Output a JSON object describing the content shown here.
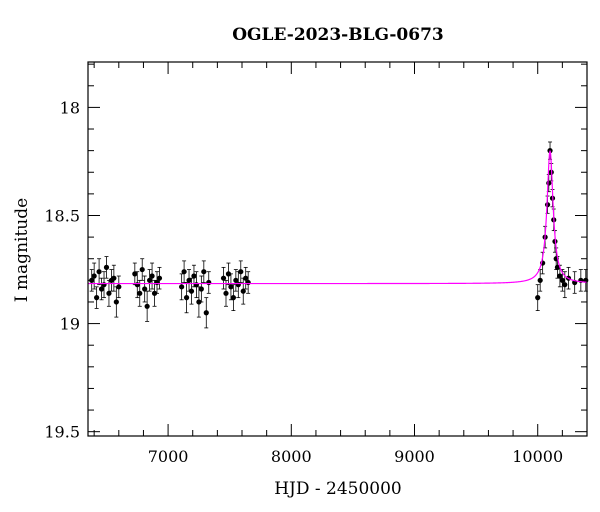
{
  "chart_data": {
    "type": "scatter",
    "title": "OGLE-2023-BLG-0673",
    "xlabel": "HJD - 2450000",
    "ylabel": "I magnitude",
    "xlim": [
      6350,
      10400
    ],
    "ylim": [
      19.52,
      17.79
    ],
    "y_inverted": true,
    "x_ticks": [
      7000,
      8000,
      9000,
      10000
    ],
    "y_ticks": [
      18,
      18.5,
      19,
      19.5
    ],
    "x_tick_labels": [
      "7000",
      "8000",
      "9000",
      "10000"
    ],
    "y_tick_labels": [
      "18",
      "18.5",
      "19",
      "19.5"
    ],
    "grid": false,
    "colors": {
      "data": "#000000",
      "model": "#ff00ff",
      "axes": "#000000"
    },
    "series": [
      {
        "kind": "points_with_errorbars",
        "x": [
          6380,
          6400,
          6420,
          6440,
          6460,
          6480,
          6500,
          6520,
          6540,
          6560,
          6580,
          6600,
          6730,
          6750,
          6770,
          6790,
          6810,
          6830,
          6850,
          6870,
          6890,
          6910,
          6930,
          7110,
          7130,
          7150,
          7170,
          7190,
          7210,
          7230,
          7250,
          7270,
          7290,
          7310,
          7330,
          7450,
          7470,
          7490,
          7510,
          7530,
          7550,
          7570,
          7590,
          7610,
          7630,
          7650,
          10000,
          10020,
          10040,
          10060,
          10080,
          10090,
          10100,
          10110,
          10120,
          10130,
          10140,
          10150,
          10160,
          10180,
          10200,
          10220,
          10250,
          10300,
          10350,
          10390
        ],
        "y": [
          18.8,
          18.78,
          18.88,
          18.76,
          18.84,
          18.82,
          18.74,
          18.86,
          18.8,
          18.79,
          18.9,
          18.83,
          18.77,
          18.82,
          18.86,
          18.75,
          18.84,
          18.92,
          18.8,
          18.78,
          18.86,
          18.81,
          18.79,
          18.83,
          18.76,
          18.88,
          18.8,
          18.85,
          18.78,
          18.82,
          18.9,
          18.84,
          18.76,
          18.95,
          18.81,
          18.79,
          18.86,
          18.77,
          18.83,
          18.88,
          18.8,
          18.82,
          18.76,
          18.85,
          18.79,
          18.81,
          18.88,
          18.8,
          18.72,
          18.6,
          18.45,
          18.35,
          18.2,
          18.3,
          18.42,
          18.52,
          18.62,
          18.7,
          18.74,
          18.78,
          18.8,
          18.82,
          18.79,
          18.81,
          18.8,
          18.8
        ],
        "yerr": [
          0.05,
          0.06,
          0.05,
          0.06,
          0.05,
          0.06,
          0.05,
          0.06,
          0.05,
          0.06,
          0.07,
          0.05,
          0.05,
          0.06,
          0.06,
          0.05,
          0.06,
          0.07,
          0.05,
          0.06,
          0.06,
          0.05,
          0.05,
          0.06,
          0.05,
          0.07,
          0.05,
          0.06,
          0.05,
          0.06,
          0.07,
          0.06,
          0.05,
          0.07,
          0.05,
          0.05,
          0.06,
          0.05,
          0.06,
          0.06,
          0.05,
          0.06,
          0.05,
          0.06,
          0.05,
          0.05,
          0.06,
          0.05,
          0.05,
          0.05,
          0.04,
          0.04,
          0.04,
          0.04,
          0.04,
          0.05,
          0.05,
          0.05,
          0.05,
          0.05,
          0.05,
          0.06,
          0.05,
          0.05,
          0.05,
          0.05
        ]
      },
      {
        "kind": "model_curve",
        "baseline": 18.815,
        "peak_mag": 18.2,
        "t0": 10100,
        "tE": 30
      }
    ]
  }
}
